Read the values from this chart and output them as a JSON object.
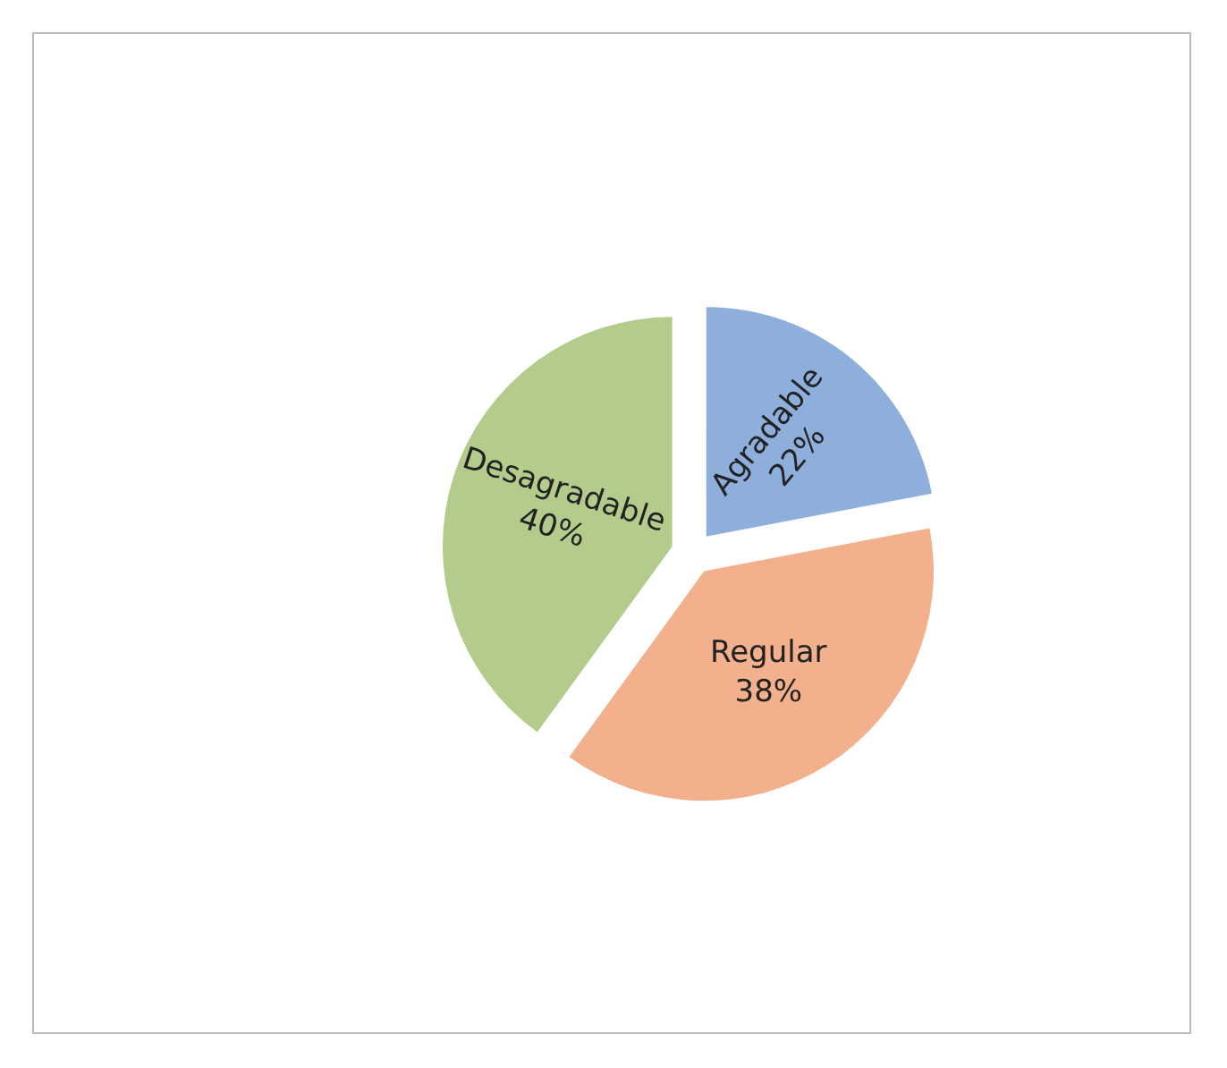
{
  "chart_data": {
    "type": "pie",
    "categories": [
      "Agradable",
      "Regular",
      "Desagradable"
    ],
    "values": [
      22,
      38,
      40
    ],
    "value_labels": [
      "22%",
      "38%",
      "40%"
    ],
    "colors": [
      "#8eaedc",
      "#f2b08c",
      "#b3cc8c"
    ],
    "legend": false
  }
}
